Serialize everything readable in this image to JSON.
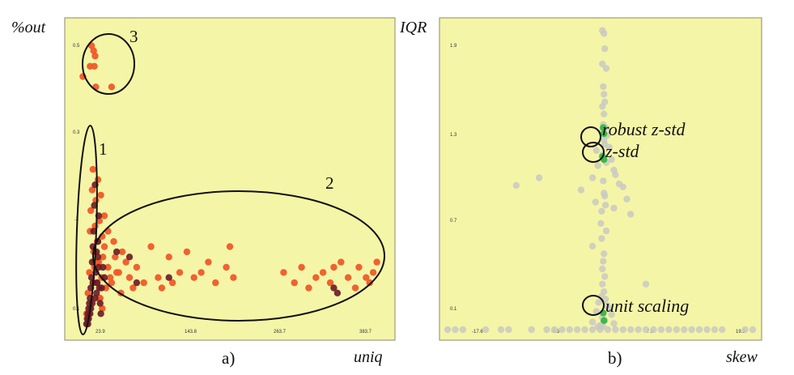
{
  "colors": {
    "plot_bg": "#f5f5a8",
    "frame": "#8a8a6a",
    "orange": "#ef5a28",
    "dark": "#6b1a24",
    "grey": "#c9c9c2",
    "green": "#3cb84a"
  },
  "chart_data": [
    {
      "type": "scatter",
      "caption": "a)",
      "xlabel": "uniq",
      "ylabel": "%out",
      "xticks": [
        "23.9",
        "143.8",
        "263.7",
        "383.7"
      ],
      "yticks": [
        "0.5",
        "0.3",
        ".2",
        "0.1"
      ],
      "ellipse_labels": [
        "1",
        "2",
        "3"
      ],
      "series": [
        {
          "color": "orange",
          "points": [
            [
              10,
              0.02
            ],
            [
              12,
              0.06
            ],
            [
              14,
              0.1
            ],
            [
              15,
              0.18
            ],
            [
              16,
              0.22
            ],
            [
              18,
              0.26
            ],
            [
              19,
              0.3
            ],
            [
              20,
              0.14
            ],
            [
              21,
              0.11
            ],
            [
              22,
              0.19
            ],
            [
              23,
              0.24
            ],
            [
              24,
              0.08
            ],
            [
              25,
              0.16
            ],
            [
              26,
              0.28
            ],
            [
              27,
              0.12
            ],
            [
              28,
              0.2
            ],
            [
              29,
              0.05
            ],
            [
              30,
              0.25
            ],
            [
              31,
              0.09
            ],
            [
              32,
              0.17
            ],
            [
              33,
              0.13
            ],
            [
              35,
              0.21
            ],
            [
              37,
              0.07
            ],
            [
              40,
              0.11
            ],
            [
              45,
              0.08
            ],
            [
              50,
              0.13
            ],
            [
              55,
              0.1
            ],
            [
              60,
              0.14
            ],
            [
              65,
              0.12
            ],
            [
              70,
              0.09
            ],
            [
              75,
              0.07
            ],
            [
              80,
              0.11
            ],
            [
              90,
              0.08
            ],
            [
              100,
              0.15
            ],
            [
              110,
              0.09
            ],
            [
              115,
              0.07
            ],
            [
              125,
              0.13
            ],
            [
              130,
              0.08
            ],
            [
              140,
              0.1
            ],
            [
              150,
              0.14
            ],
            [
              160,
              0.09
            ],
            [
              170,
              0.1
            ],
            [
              180,
              0.12
            ],
            [
              190,
              0.08
            ],
            [
              205,
              0.11
            ],
            [
              210,
              0.15
            ],
            [
              215,
              0.09
            ],
            [
              285,
              0.1
            ],
            [
              300,
              0.08
            ],
            [
              310,
              0.11
            ],
            [
              320,
              0.07
            ],
            [
              330,
              0.09
            ],
            [
              340,
              0.1
            ],
            [
              350,
              0.08
            ],
            [
              355,
              0.11
            ],
            [
              365,
              0.12
            ],
            [
              375,
              0.09
            ],
            [
              385,
              0.07
            ],
            [
              390,
              0.11
            ],
            [
              400,
              0.09
            ],
            [
              405,
              0.08
            ],
            [
              410,
              0.1
            ],
            [
              415,
              0.12
            ],
            [
              5,
              0.48
            ],
            [
              15,
              0.5
            ],
            [
              20,
              0.53
            ],
            [
              21,
              0.5
            ],
            [
              22,
              0.52
            ],
            [
              45,
              0.46
            ],
            [
              23,
              0.46
            ],
            [
              17,
              0.54
            ],
            [
              25,
              0.12
            ],
            [
              28,
              0.05
            ],
            [
              32,
              0.03
            ],
            [
              35,
              0.15
            ],
            [
              40,
              0.18
            ],
            [
              43,
              0.09
            ],
            [
              48,
              0.16
            ],
            [
              52,
              0.1
            ],
            [
              58,
              0.06
            ]
          ]
        },
        {
          "color": "dark",
          "points": [
            [
              10,
              0.0
            ],
            [
              11,
              0.01
            ],
            [
              12,
              0.02
            ],
            [
              13,
              0.03
            ],
            [
              14,
              0.04
            ],
            [
              15,
              0.05
            ],
            [
              16,
              0.07
            ],
            [
              17,
              0.09
            ],
            [
              18,
              0.12
            ],
            [
              19,
              0.15
            ],
            [
              20,
              0.18
            ],
            [
              21,
              0.23
            ],
            [
              22,
              0.27
            ],
            [
              23,
              0.1
            ],
            [
              24,
              0.06
            ],
            [
              25,
              0.08
            ],
            [
              26,
              0.13
            ],
            [
              27,
              0.11
            ],
            [
              28,
              0.07
            ],
            [
              29,
              0.04
            ],
            [
              30,
              0.02
            ],
            [
              12,
              0.0
            ],
            [
              13,
              0.01
            ],
            [
              15,
              0.02
            ],
            [
              16,
              0.03
            ],
            [
              18,
              0.04
            ],
            [
              19,
              0.08
            ],
            [
              22,
              0.05
            ],
            [
              24,
              0.14
            ],
            [
              26,
              0.16
            ],
            [
              27,
              0.21
            ],
            [
              52,
              0.14
            ],
            [
              70,
              0.13
            ],
            [
              80,
              0.08
            ],
            [
              125,
              0.09
            ],
            [
              355,
              0.07
            ],
            [
              360,
              0.06
            ],
            [
              35,
              0.09
            ],
            [
              33,
              0.11
            ],
            [
              31,
              0.07
            ]
          ]
        }
      ]
    },
    {
      "type": "scatter",
      "caption": "b)",
      "xlabel": "skew",
      "ylabel": "IQR",
      "xticks": [
        "-17.6",
        "-5.5",
        "7.0",
        "19.3"
      ],
      "yticks": [
        "1.9",
        "1.3",
        "0.7",
        "0.1"
      ],
      "annotations": [
        "robust z-std",
        "z-std",
        "unit scaling"
      ],
      "series": [
        {
          "color": "grey",
          "points": [
            [
              0.3,
              1.97
            ],
            [
              0.5,
              1.95
            ],
            [
              0.6,
              1.85
            ],
            [
              0.3,
              1.75
            ],
            [
              0.8,
              1.72
            ],
            [
              0.4,
              1.6
            ],
            [
              0.5,
              1.55
            ],
            [
              0.6,
              1.5
            ],
            [
              0.3,
              1.47
            ],
            [
              0.5,
              1.42
            ],
            [
              0.4,
              1.35
            ],
            [
              0.7,
              1.33
            ],
            [
              0.2,
              1.3
            ],
            [
              0.9,
              1.28
            ],
            [
              0.5,
              1.25
            ],
            [
              0.6,
              1.22
            ],
            [
              1.2,
              1.2
            ],
            [
              -0.5,
              1.18
            ],
            [
              0.3,
              1.15
            ],
            [
              1.5,
              1.12
            ],
            [
              0.8,
              1.1
            ],
            [
              -0.3,
              1.08
            ],
            [
              1.8,
              1.05
            ],
            [
              2.0,
              1.02
            ],
            [
              -1.0,
              1.0
            ],
            [
              0.4,
              0.98
            ],
            [
              2.5,
              0.96
            ],
            [
              3.0,
              0.94
            ],
            [
              -2.5,
              0.92
            ],
            [
              0.5,
              0.9
            ],
            [
              0.6,
              0.88
            ],
            [
              3.5,
              0.86
            ],
            [
              -0.6,
              0.84
            ],
            [
              0.7,
              0.82
            ],
            [
              1.8,
              0.8
            ],
            [
              0.2,
              0.78
            ],
            [
              4.0,
              0.76
            ],
            [
              0.1,
              0.7
            ],
            [
              0.8,
              0.65
            ],
            [
              -1.0,
              0.55
            ],
            [
              0.5,
              0.5
            ],
            [
              0.3,
              0.4
            ],
            [
              0.6,
              0.35
            ],
            [
              0.3,
              0.3
            ],
            [
              0.5,
              0.25
            ],
            [
              0.2,
              0.22
            ],
            [
              0.7,
              0.2
            ],
            [
              -0.2,
              0.18
            ],
            [
              0.9,
              0.16
            ],
            [
              1.2,
              0.14
            ],
            [
              -0.5,
              0.12
            ],
            [
              1.5,
              0.1
            ],
            [
              0.3,
              0.08
            ],
            [
              0.6,
              0.06
            ],
            [
              -1.0,
              0.05
            ],
            [
              1.8,
              0.04
            ],
            [
              0.1,
              0.03
            ],
            [
              -0.3,
              0.02
            ],
            [
              0.4,
              0.02
            ],
            [
              -8.0,
              1.0
            ],
            [
              -11.0,
              0.95
            ],
            [
              6.0,
              0.3
            ],
            [
              0.2,
              0.6
            ],
            [
              0.4,
              0.45
            ],
            [
              -20,
              0.0
            ],
            [
              -19,
              0.0
            ],
            [
              -18,
              0.0
            ],
            [
              -15,
              0.0
            ],
            [
              -13,
              0.0
            ],
            [
              -12,
              0.0
            ],
            [
              -9,
              0.0
            ],
            [
              -7,
              0.0
            ],
            [
              -6,
              0.0
            ],
            [
              -5,
              0.0
            ],
            [
              -4,
              0.0
            ],
            [
              -3,
              0.0
            ],
            [
              -2,
              0.0
            ],
            [
              -1,
              0.0
            ],
            [
              0,
              0.0
            ],
            [
              1,
              0.0
            ],
            [
              2,
              0.0
            ],
            [
              3,
              0.0
            ],
            [
              4,
              0.0
            ],
            [
              5,
              0.0
            ],
            [
              6,
              0.0
            ],
            [
              7,
              0.0
            ],
            [
              8,
              0.0
            ],
            [
              9,
              0.0
            ],
            [
              10,
              0.0
            ],
            [
              11,
              0.0
            ],
            [
              12,
              0.0
            ],
            [
              13,
              0.0
            ],
            [
              14,
              0.0
            ],
            [
              15,
              0.0
            ],
            [
              16,
              0.0
            ],
            [
              19,
              0.0
            ],
            [
              20,
              0.0
            ]
          ]
        },
        {
          "color": "green",
          "points": [
            [
              0.4,
              1.33
            ],
            [
              0.5,
              1.29
            ],
            [
              0.3,
              1.14
            ],
            [
              0.5,
              1.12
            ],
            [
              0.4,
              0.11
            ],
            [
              0.5,
              0.06
            ]
          ]
        }
      ]
    }
  ]
}
